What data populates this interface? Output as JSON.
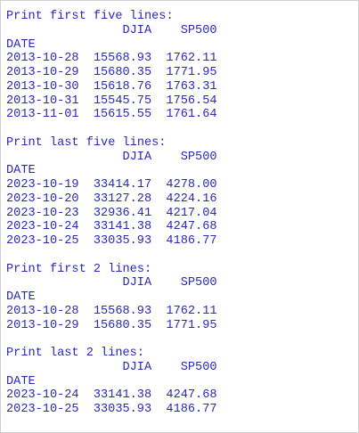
{
  "sections": [
    {
      "heading": "Print first five lines:",
      "columns": [
        "DJIA",
        "SP500"
      ],
      "index_name": "DATE",
      "rows": [
        [
          "2013-10-28",
          "15568.93",
          "1762.11"
        ],
        [
          "2013-10-29",
          "15680.35",
          "1771.95"
        ],
        [
          "2013-10-30",
          "15618.76",
          "1763.31"
        ],
        [
          "2013-10-31",
          "15545.75",
          "1756.54"
        ],
        [
          "2013-11-01",
          "15615.55",
          "1761.64"
        ]
      ]
    },
    {
      "heading": "Print last five lines:",
      "columns": [
        "DJIA",
        "SP500"
      ],
      "index_name": "DATE",
      "rows": [
        [
          "2023-10-19",
          "33414.17",
          "4278.00"
        ],
        [
          "2023-10-20",
          "33127.28",
          "4224.16"
        ],
        [
          "2023-10-23",
          "32936.41",
          "4217.04"
        ],
        [
          "2023-10-24",
          "33141.38",
          "4247.68"
        ],
        [
          "2023-10-25",
          "33035.93",
          "4186.77"
        ]
      ]
    },
    {
      "heading": "Print first 2 lines:",
      "columns": [
        "DJIA",
        "SP500"
      ],
      "index_name": "DATE",
      "rows": [
        [
          "2013-10-28",
          "15568.93",
          "1762.11"
        ],
        [
          "2013-10-29",
          "15680.35",
          "1771.95"
        ]
      ]
    },
    {
      "heading": "Print last 2 lines:",
      "columns": [
        "DJIA",
        "SP500"
      ],
      "index_name": "DATE",
      "rows": [
        [
          "2023-10-24",
          "33141.38",
          "4247.68"
        ],
        [
          "2023-10-25",
          "33035.93",
          "4186.77"
        ]
      ]
    }
  ]
}
